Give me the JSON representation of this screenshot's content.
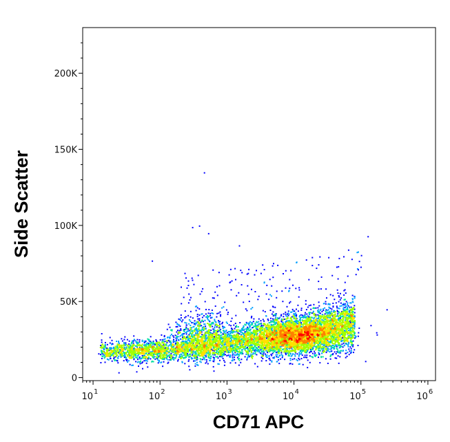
{
  "chart_data": {
    "type": "scatter",
    "subtype": "density-dot-plot",
    "title": "",
    "xlabel": "CD71 APC",
    "ylabel": "Side Scatter",
    "x_scale": "log",
    "xlim": [
      7,
      1300000
    ],
    "ylim": [
      -2000,
      230000
    ],
    "grid": false,
    "legend": "none",
    "x_ticks": [
      {
        "base": "10",
        "exp": "1",
        "value": 10
      },
      {
        "base": "10",
        "exp": "2",
        "value": 100
      },
      {
        "base": "10",
        "exp": "3",
        "value": 1000
      },
      {
        "base": "10",
        "exp": "4",
        "value": 10000
      },
      {
        "base": "10",
        "exp": "5",
        "value": 100000
      },
      {
        "base": "10",
        "exp": "6",
        "value": 1000000
      }
    ],
    "y_ticks": [
      {
        "label": "0",
        "value": 0
      },
      {
        "label": "50K",
        "value": 50000
      },
      {
        "label": "100K",
        "value": 100000
      },
      {
        "label": "150K",
        "value": 150000
      },
      {
        "label": "200K",
        "value": 200000
      }
    ],
    "density_colors": [
      "#0000ff",
      "#00a0ff",
      "#00e0a0",
      "#a0ff00",
      "#ffe000",
      "#ff8000",
      "#ff0000"
    ],
    "population": {
      "description_points": [
        {
          "x": 20,
          "y": 18000
        },
        {
          "x": 100,
          "y": 18000
        },
        {
          "x": 1000,
          "y": 22000
        },
        {
          "x": 10000,
          "y": 28000
        },
        {
          "x": 60000,
          "y": 35000
        }
      ],
      "peak": {
        "x": 10000,
        "y": 28000
      },
      "secondary_cluster": {
        "x": 400,
        "y": 30000
      }
    },
    "outliers": [
      {
        "x": 450,
        "y": 135000
      },
      {
        "x": 380,
        "y": 100000
      },
      {
        "x": 300,
        "y": 99000
      },
      {
        "x": 520,
        "y": 95000
      },
      {
        "x": 75,
        "y": 77000
      },
      {
        "x": 1500,
        "y": 87000
      },
      {
        "x": 125000,
        "y": 93000
      },
      {
        "x": 240000,
        "y": 45000
      },
      {
        "x": 115000,
        "y": 11000
      }
    ]
  }
}
